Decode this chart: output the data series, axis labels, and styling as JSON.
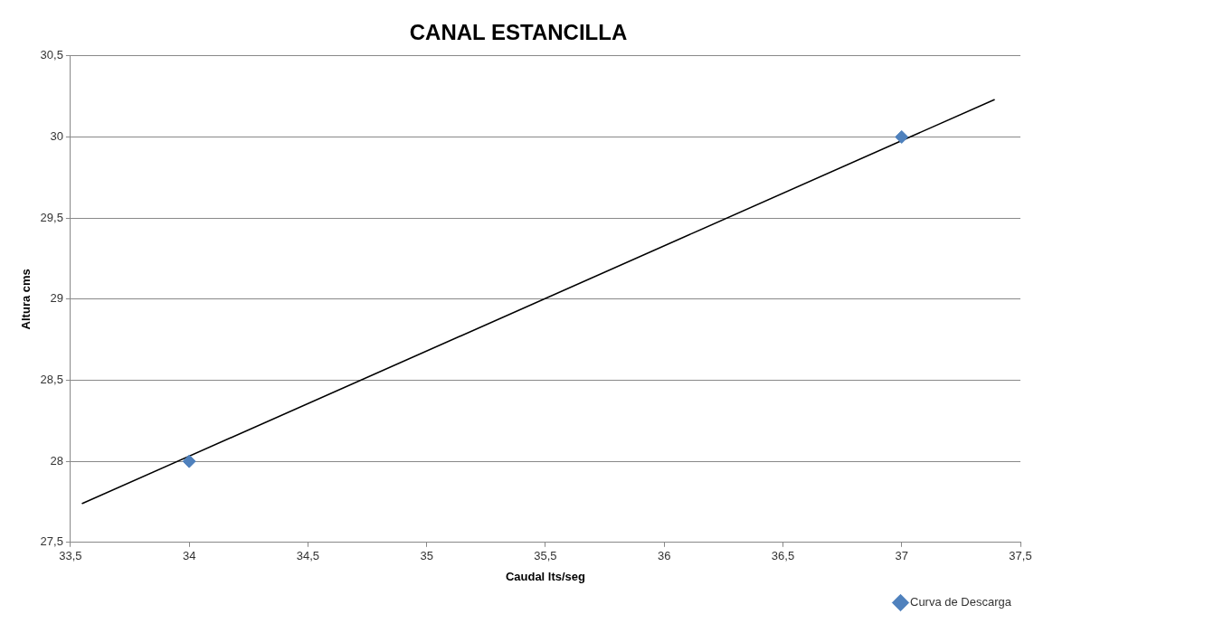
{
  "chart_data": {
    "type": "scatter",
    "title": "CANAL ESTANCILLA",
    "xlabel": "Caudal lts/seg",
    "ylabel": "Altura cms",
    "series": [
      {
        "name": "Curva de Descarga",
        "color": "#4f81bd",
        "marker": "diamond",
        "x": [
          34,
          37
        ],
        "values": [
          28,
          30
        ]
      },
      {
        "type": "line",
        "color": "#000000",
        "marker": "none",
        "line_style": "solid",
        "x": [
          33.55,
          37.39
        ],
        "values": [
          27.74,
          30.23
        ]
      }
    ],
    "xlim": [
      33.5,
      37.5
    ],
    "xticks": [
      {
        "value": 33.5,
        "label": "33,5"
      },
      34,
      {
        "value": 34.5,
        "label": "34,5"
      },
      35,
      {
        "value": 35.5,
        "label": "35,5"
      },
      36,
      {
        "value": 36.5,
        "label": "36,5"
      },
      37,
      {
        "value": 37.5,
        "label": "37,5"
      }
    ],
    "ylim": [
      27.5,
      30.5
    ],
    "yticks": [
      {
        "value": 27.5,
        "label": "27,5"
      },
      28,
      {
        "value": 28.5,
        "label": "28,5"
      },
      29,
      {
        "value": 29.5,
        "label": "29,5"
      },
      30,
      {
        "value": 30.5,
        "label": "30,5"
      }
    ],
    "grid": "y",
    "legend": "bottom right"
  }
}
